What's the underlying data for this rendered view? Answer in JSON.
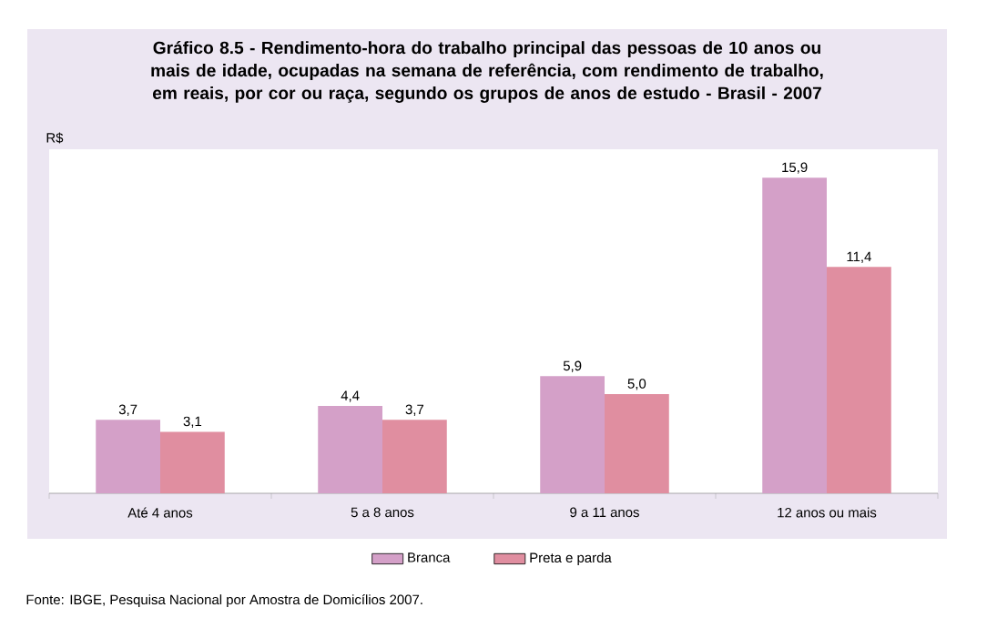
{
  "chart_data": {
    "type": "bar",
    "title": "**Gráfico 8.5** - Rendimento-hora do trabalho principal das pessoas de 10 anos ou mais de idade, ocupadas na semana de referência, com rendimento de trabalho, em reais, por cor ou raça, segundo os grupos de anos de estudo - Brasil - 2007",
    "ylabel": "R$",
    "categories": [
      "Até 4 anos",
      "5 a 8 anos",
      "9 a 11 anos",
      "12 anos ou mais"
    ],
    "series": [
      {
        "name": "Branca",
        "color": "#d4a0c8",
        "values": [
          3.7,
          4.4,
          5.9,
          15.9
        ],
        "value_labels": [
          "3,7",
          "4,4",
          "5,9",
          "15,9"
        ]
      },
      {
        "name": "Preta e parda",
        "color": "#e08ea0",
        "values": [
          3.1,
          3.7,
          5.0,
          11.4
        ],
        "value_labels": [
          "3,1",
          "3,7",
          "5,0",
          "11,4"
        ]
      }
    ],
    "legend": "bottom",
    "annotations": [
      "Fonte: IBGE, Pesquisa Nacional por Amostra de Domicílios 2007."
    ]
  }
}
